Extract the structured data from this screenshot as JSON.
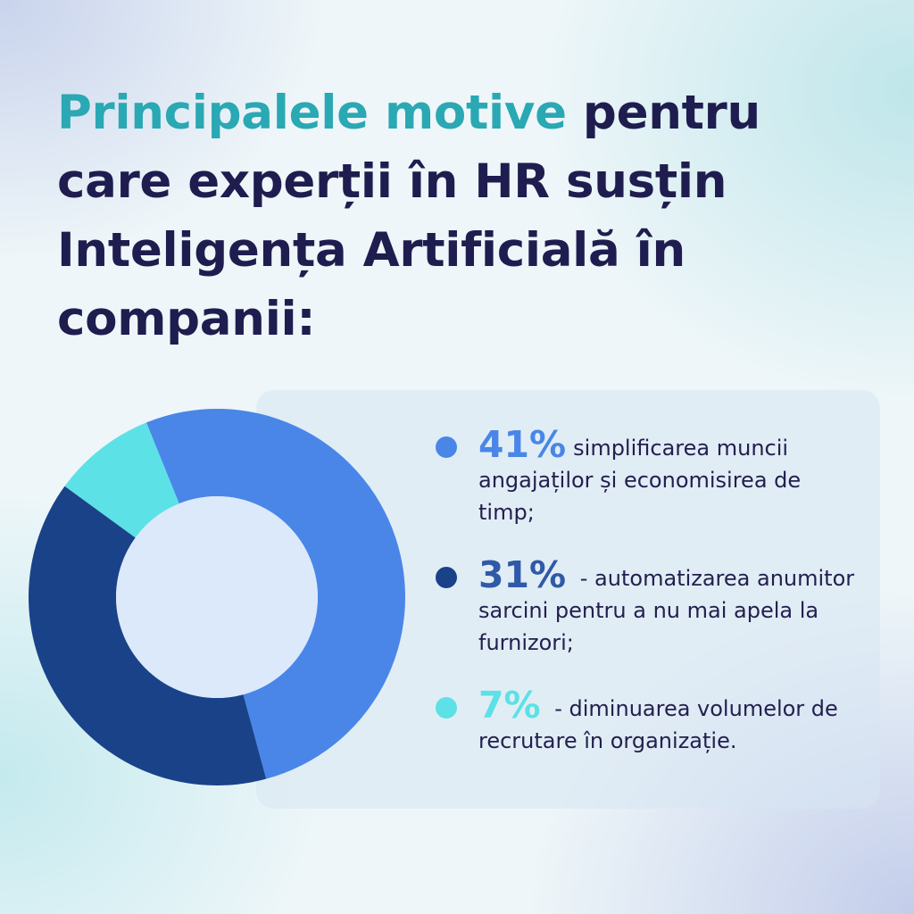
{
  "title": {
    "highlight": "Principalele motive",
    "rest": " pentru care experții în HR susțin Inteligența Artificială în companii:"
  },
  "colors": {
    "title_highlight": "#2aa8b3",
    "title_text": "#1f1d4f",
    "donut_hole": "#dbe9fb"
  },
  "chart_data": {
    "type": "pie",
    "donut": true,
    "slices": [
      {
        "label": "41%",
        "value": 41,
        "description": "simplificarea muncii angajaților și economisirea de timp;",
        "color": "#4a86e8"
      },
      {
        "label": "31%",
        "value": 31,
        "description": " - automatizarea anumitor sarcini pentru a nu mai apela la furnizori;",
        "color": "#1a4289"
      },
      {
        "label": "7%",
        "value": 7,
        "description": " - diminuarea volumelor de recrutare în organizație.",
        "color": "#5ce1e6"
      }
    ]
  }
}
